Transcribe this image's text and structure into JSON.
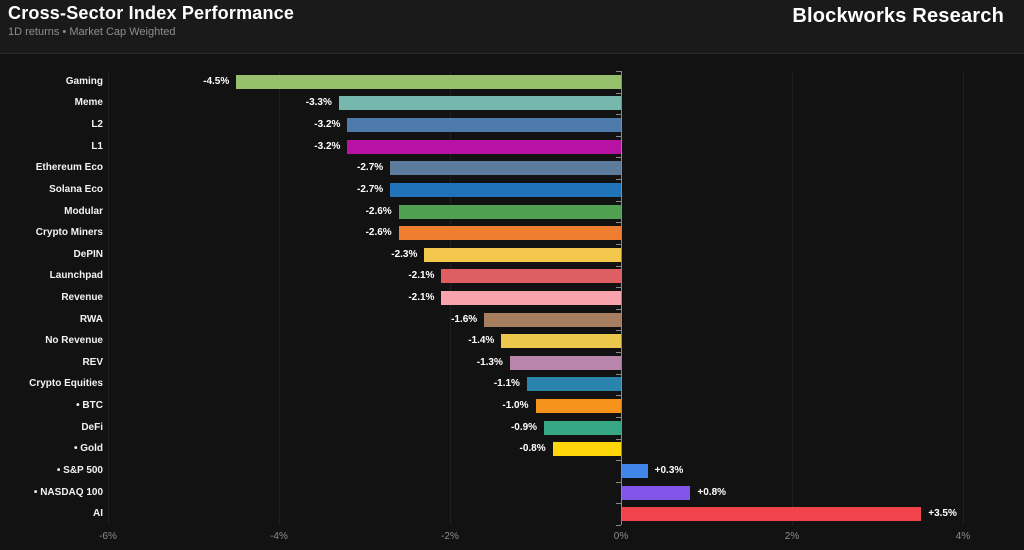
{
  "header": {
    "title": "Cross-Sector Index Performance",
    "subtitle": "1D returns • Market Cap Weighted",
    "brand": "Blockworks Research"
  },
  "theme": {
    "page_background": "#121212",
    "header_background": "#1a1a1a",
    "divider": "#2b2b2b",
    "gridline": "#202020",
    "axis_line": "#8a8a8a",
    "text_primary": "#ffffff",
    "text_muted": "#8e8e8e"
  },
  "chart_data": {
    "type": "bar",
    "orientation": "horizontal",
    "title": "Cross-Sector Index Performance",
    "subtitle": "1D returns • Market Cap Weighted",
    "xlabel": "",
    "ylabel": "",
    "xlim": [
      -6,
      4.7
    ],
    "grid": "vertical-faint",
    "zero_line": true,
    "legend": "none",
    "categories": [
      "Gaming",
      "Meme",
      "L2",
      "L1",
      "Ethereum Eco",
      "Solana Eco",
      "Modular",
      "Crypto Miners",
      "DePIN",
      "Launchpad",
      "Revenue",
      "RWA",
      "No Revenue",
      "REV",
      "Crypto Equities",
      "• BTC",
      "DeFi",
      "• Gold",
      "• S&P 500",
      "• NASDAQ 100",
      "AI"
    ],
    "values": [
      -4.5,
      -3.3,
      -3.2,
      -3.2,
      -2.7,
      -2.7,
      -2.6,
      -2.6,
      -2.3,
      -2.1,
      -2.1,
      -1.6,
      -1.4,
      -1.3,
      -1.1,
      -1.0,
      -0.9,
      -0.8,
      0.3,
      0.8,
      3.5
    ],
    "value_labels": [
      "-4.5%",
      "-3.3%",
      "-3.2%",
      "-3.2%",
      "-2.7%",
      "-2.7%",
      "-2.6%",
      "-2.6%",
      "-2.3%",
      "-2.1%",
      "-2.1%",
      "-1.6%",
      "-1.4%",
      "-1.3%",
      "-1.1%",
      "-1.0%",
      "-0.9%",
      "-0.8%",
      "+0.3%",
      "+0.8%",
      "+3.5%"
    ],
    "colors": [
      "#96C06C",
      "#76B7AE",
      "#4E79AB",
      "#B812A5",
      "#5C7B9D",
      "#2173B9",
      "#4FA050",
      "#EE7D2F",
      "#F2C74C",
      "#DF5E63",
      "#F9A3AC",
      "#A87E61",
      "#EBC74B",
      "#B985AC",
      "#2A84AD",
      "#F6931D",
      "#36A883",
      "#FFD60A",
      "#3F86E8",
      "#8355E8",
      "#F0434C"
    ],
    "x_ticks": [
      -6,
      -4,
      -2,
      0,
      2,
      4
    ],
    "x_tick_labels": [
      "-6%",
      "-4%",
      "-2%",
      "0%",
      "2%",
      "4%"
    ]
  }
}
